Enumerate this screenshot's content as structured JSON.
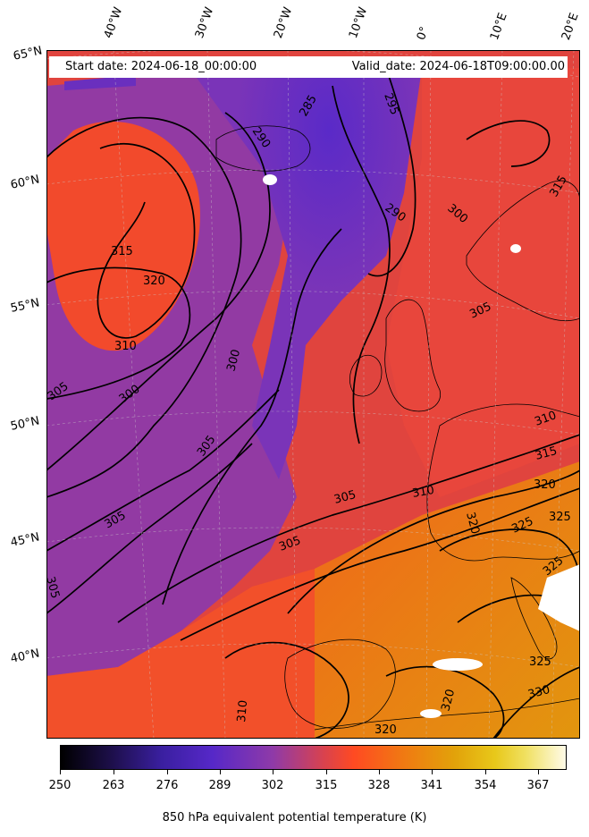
{
  "header": {
    "start_date": "Start date: 2024-06-18_00:00:00",
    "valid_date": "Valid_date: 2024-06-18T09:00:00.00"
  },
  "lon_labels": [
    "40°W",
    "30°W",
    "20°W",
    "10°W",
    "0°",
    "10°E",
    "20°E"
  ],
  "lat_labels": [
    "65°N",
    "60°N",
    "55°N",
    "50°N",
    "45°N",
    "40°N"
  ],
  "contour_labels": [
    "285",
    "290",
    "290",
    "295",
    "300",
    "300",
    "300",
    "305",
    "305",
    "305",
    "305",
    "305",
    "305",
    "305",
    "310",
    "310",
    "310",
    "310",
    "315",
    "315",
    "315",
    "320",
    "320",
    "320",
    "320",
    "320",
    "325",
    "325",
    "325",
    "325",
    "330"
  ],
  "colorbar": {
    "title": "850 hPa equivalent potential temperature (K)",
    "ticks": [
      "250",
      "263",
      "276",
      "289",
      "302",
      "315",
      "328",
      "341",
      "354",
      "367"
    ],
    "colormap": [
      "#000000",
      "#3a1fa0",
      "#5628c8",
      "#d8424f",
      "#ff4a22",
      "#e2a20a",
      "#fffbe8"
    ]
  }
}
